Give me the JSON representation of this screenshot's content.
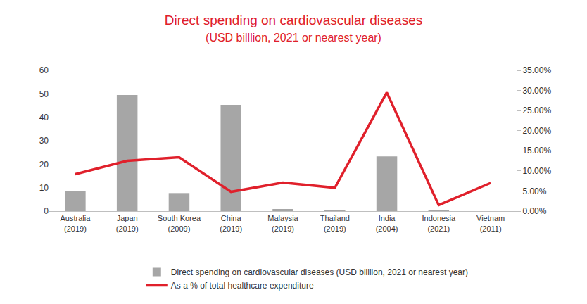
{
  "chart_data": {
    "type": "bar",
    "title": "Direct spending on cardiovascular diseases",
    "subtitle": "(USD billlion, 2021 or nearest year)",
    "categories": [
      "Australia (2019)",
      "Japan (2019)",
      "South Korea (2009)",
      "China (2019)",
      "Malaysia (2019)",
      "Thailand (2019)",
      "India (2004)",
      "Indonesia (2021)",
      "Vietnam (2011)"
    ],
    "series": [
      {
        "name": "Direct spending on cardiovascular diseases (USD billlion, 2021 or nearest year)",
        "type": "bar",
        "color": "#a6a6a6",
        "values": [
          8.7,
          49.5,
          7.7,
          45.3,
          0.9,
          0.4,
          23.3,
          0.3,
          null
        ]
      },
      {
        "name": "As a % of total healthcare expenditure",
        "type": "line",
        "color": "#e0202b",
        "axis": "y2",
        "values": [
          9.2,
          12.5,
          13.4,
          4.8,
          7.1,
          5.8,
          29.5,
          1.5,
          7.0
        ]
      }
    ],
    "ylim": [
      0,
      60
    ],
    "yticks": [
      0,
      10,
      20,
      30,
      40,
      50,
      60
    ],
    "y2lim": [
      0,
      35
    ],
    "y2ticks": [
      {
        "value": 0,
        "label": "0.00%"
      },
      {
        "value": 5,
        "label": "5.00%"
      },
      {
        "value": 10,
        "label": "10.00%"
      },
      {
        "value": 15,
        "label": "15.00%"
      },
      {
        "value": 20,
        "label": "20.00%"
      },
      {
        "value": 25,
        "label": "25.00%"
      },
      {
        "value": 30,
        "label": "30.00%"
      },
      {
        "value": 35,
        "label": "35.00%"
      }
    ],
    "grid": false,
    "legend": "bottom"
  }
}
